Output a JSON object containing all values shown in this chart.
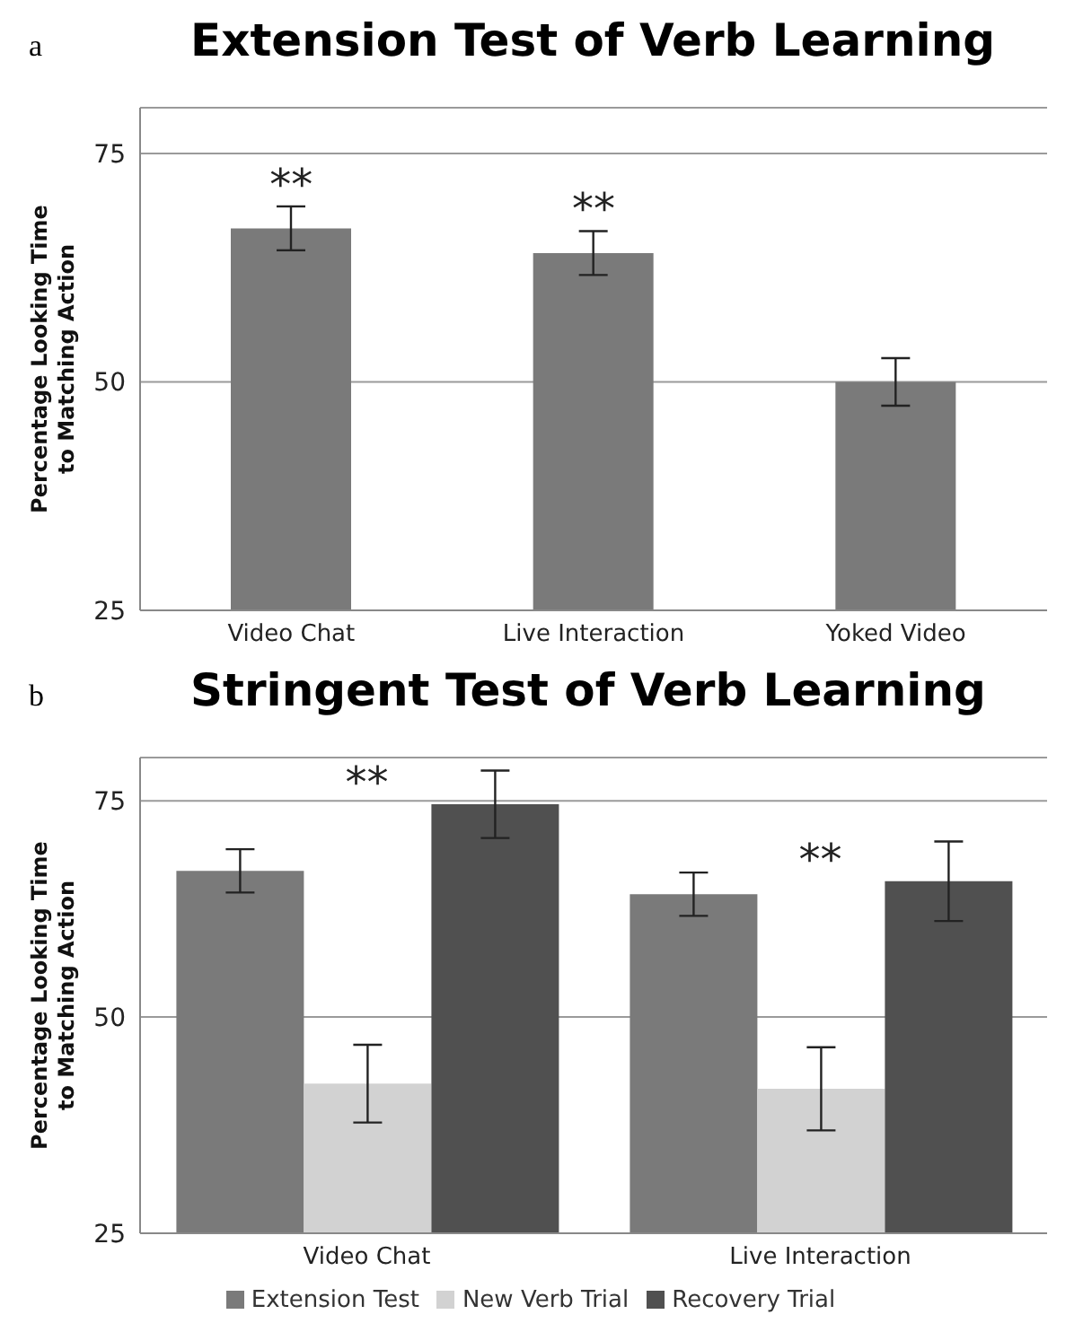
{
  "chart_data": [
    {
      "type": "bar",
      "title": "Extension Test of Verb Learning",
      "ylabel": "Percentage Looking Time to Matching Action",
      "categories": [
        "Video Chat",
        "Live Interaction",
        "Yoked Video"
      ],
      "values": [
        66.8,
        64.1,
        50.0
      ],
      "errors": [
        2.4,
        2.4,
        2.6
      ],
      "color": "#7a7a7a",
      "ylim": [
        25,
        80
      ],
      "yticks": [
        25,
        50,
        75
      ],
      "grid": "y",
      "annotations": [
        "a",
        "**",
        "**"
      ]
    },
    {
      "type": "bar",
      "title": "Stringent Test of Verb Learning",
      "ylabel": "Percentage Looking Time to Matching Action",
      "categories": [
        "Video Chat",
        "Live Interaction"
      ],
      "series": [
        {
          "name": "Extension Test",
          "color": "#7a7a7a",
          "values": [
            66.9,
            64.2
          ],
          "errors": [
            2.5,
            2.5
          ]
        },
        {
          "name": "New Verb Trial",
          "color": "#d2d2d2",
          "values": [
            42.3,
            41.7
          ],
          "errors": [
            4.5,
            4.8
          ]
        },
        {
          "name": "Recovery Trial",
          "color": "#505050",
          "values": [
            74.6,
            65.7
          ],
          "errors": [
            3.9,
            4.6
          ]
        }
      ],
      "ylim": [
        25,
        80
      ],
      "yticks": [
        25,
        50,
        75
      ],
      "grid": "y",
      "legend": "bottom",
      "annotations": [
        "b",
        "**",
        "**"
      ]
    }
  ]
}
